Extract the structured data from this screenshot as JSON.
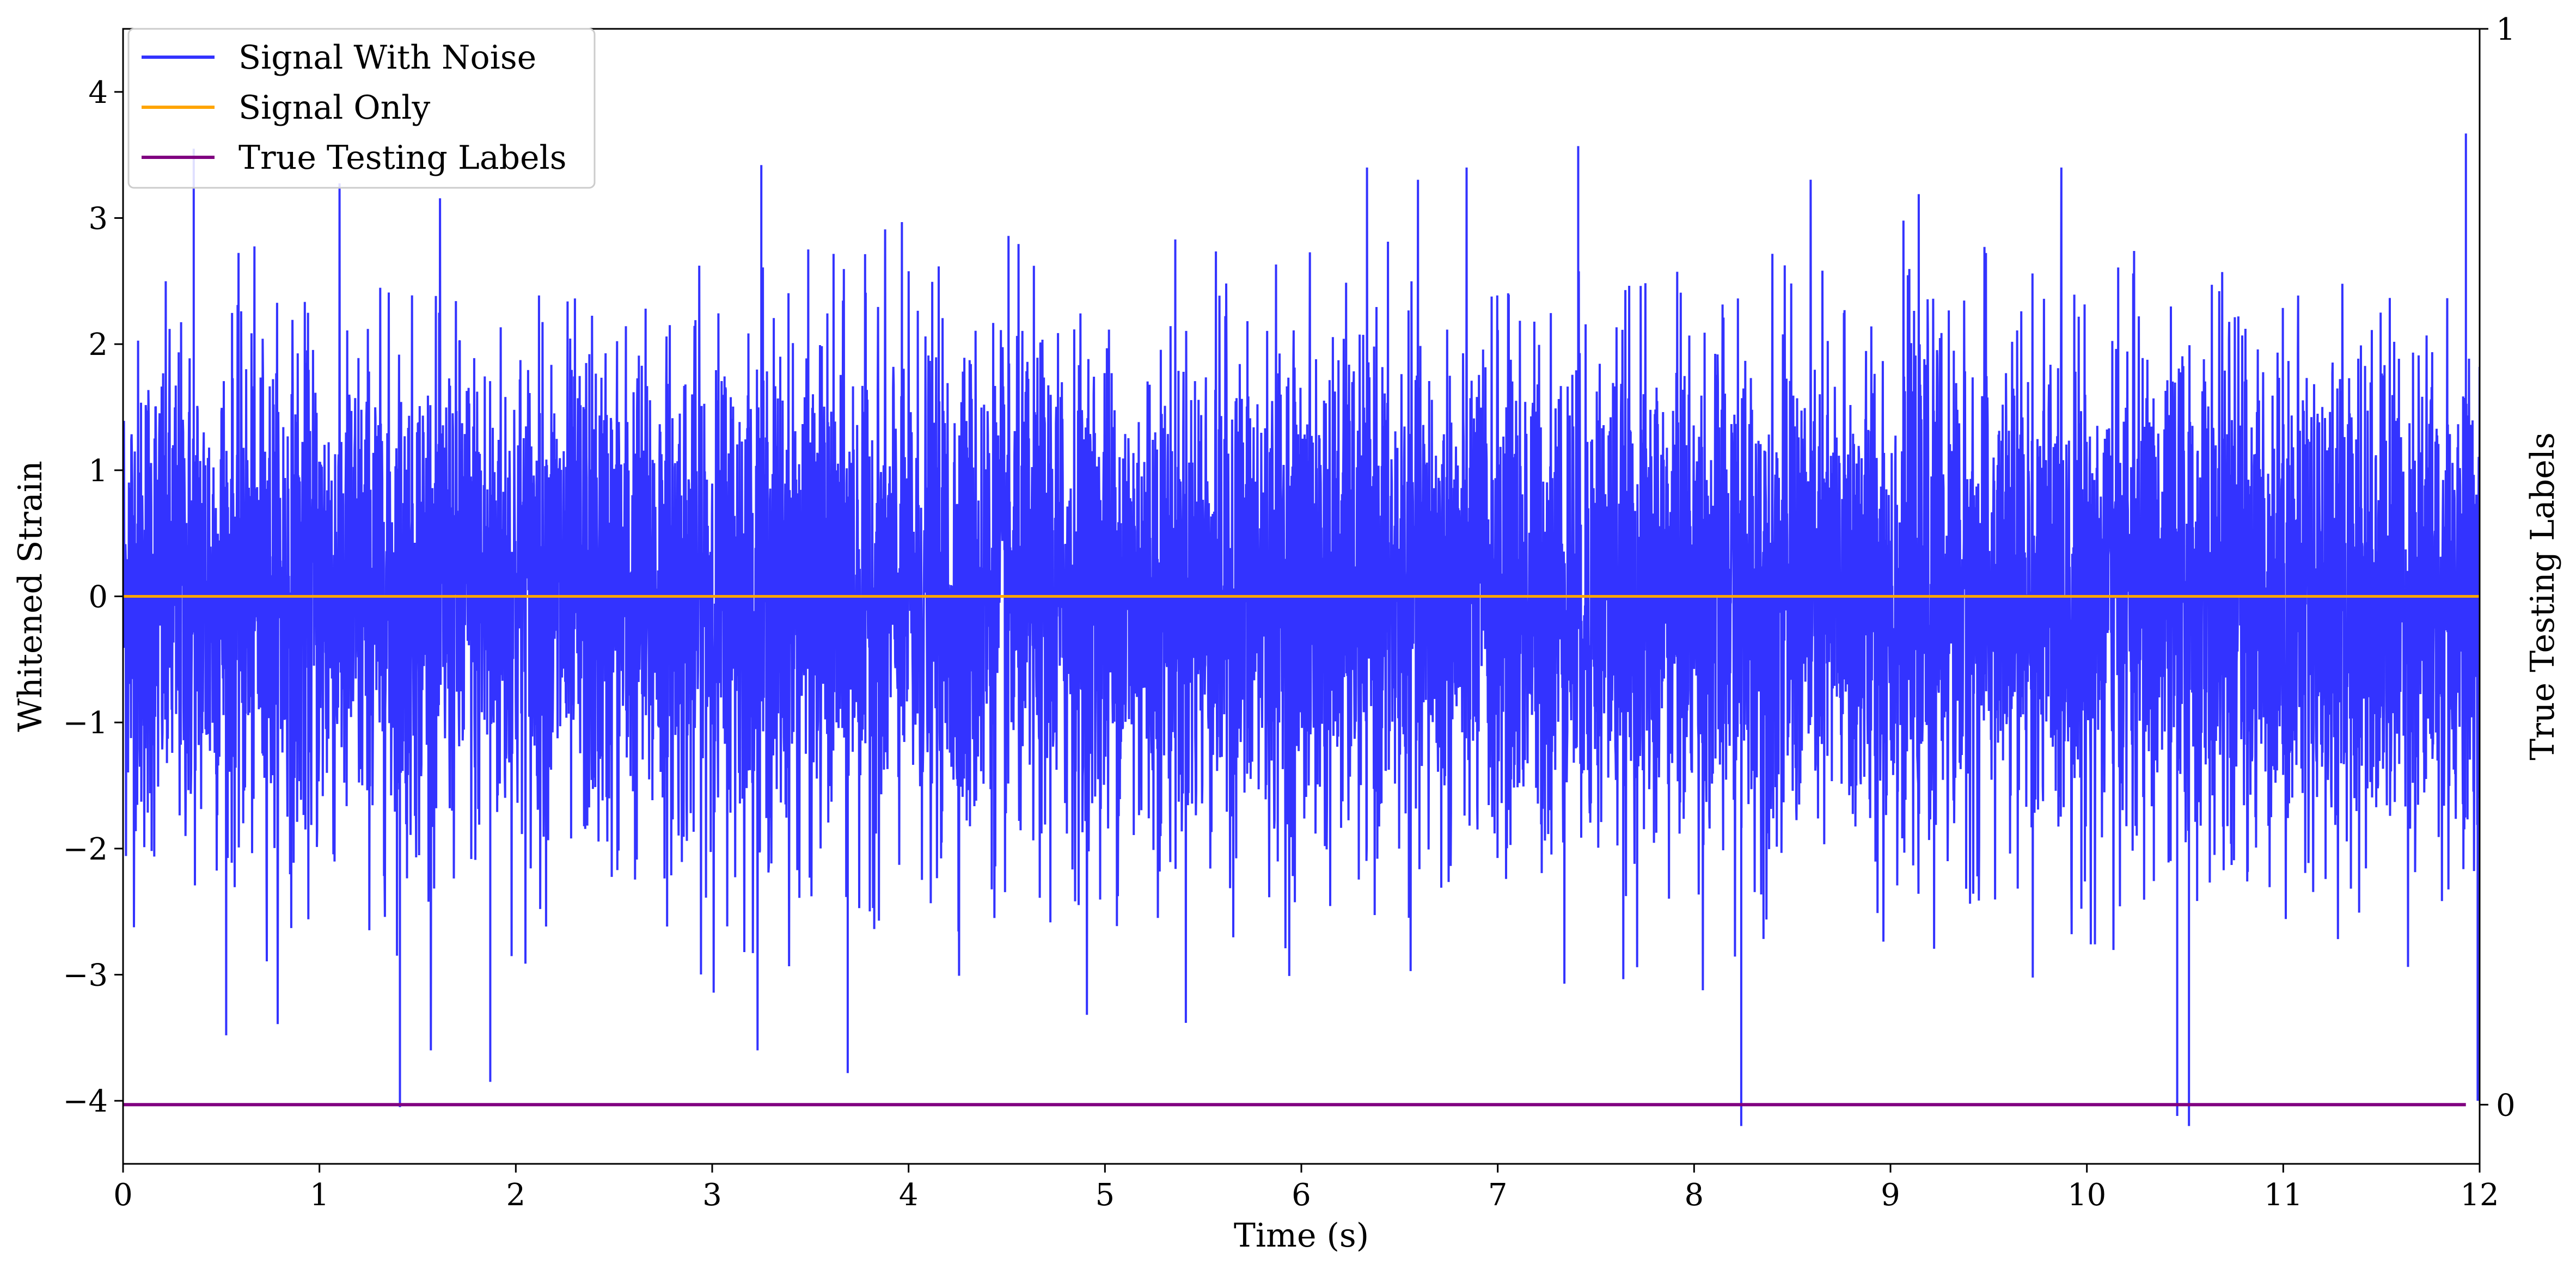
{
  "chart_data": {
    "type": "line",
    "xlabel": "Time (s)",
    "ylabel": "Whitened Strain",
    "y2label": "True Testing Labels",
    "xlim": [
      0,
      12
    ],
    "ylim": [
      -4.5,
      4.5
    ],
    "y2lim": [
      -0.055,
      1.0
    ],
    "xticks": [
      "0",
      "1",
      "2",
      "3",
      "4",
      "5",
      "6",
      "7",
      "8",
      "9",
      "10",
      "11",
      "12"
    ],
    "yticks": [
      "4",
      "3",
      "2",
      "1",
      "0",
      "−1",
      "−2",
      "−3",
      "−4"
    ],
    "y2ticks": [
      "1",
      "0"
    ],
    "legend_position": "top-left",
    "grid": false,
    "series": [
      {
        "name": "Signal With Noise",
        "color": "#3333ff",
        "axis": "left",
        "description_values": {
          "x_range": [
            0,
            12
          ],
          "approx_std": 1.0,
          "notable_extremes": [
            {
              "x": 0.36,
              "y": 3.55
            },
            {
              "x": 1.41,
              "y": -4.05
            },
            {
              "x": 1.87,
              "y": -3.85
            },
            {
              "x": 3.25,
              "y": 3.42
            },
            {
              "x": 3.69,
              "y": -3.78
            },
            {
              "x": 7.41,
              "y": 3.57
            },
            {
              "x": 8.24,
              "y": -4.2
            },
            {
              "x": 10.46,
              "y": -4.12
            },
            {
              "x": 10.52,
              "y": -4.2
            },
            {
              "x": 11.93,
              "y": 3.67
            },
            {
              "x": 11.99,
              "y": -4.0
            }
          ]
        }
      },
      {
        "name": "Signal Only",
        "color": "#ffa500",
        "axis": "left",
        "x": [
          0,
          12
        ],
        "y": [
          0,
          0
        ]
      },
      {
        "name": "True Testing Labels",
        "color": "#800080",
        "axis": "right",
        "x": [
          0,
          11.93
        ],
        "y": [
          0,
          0
        ]
      }
    ]
  }
}
